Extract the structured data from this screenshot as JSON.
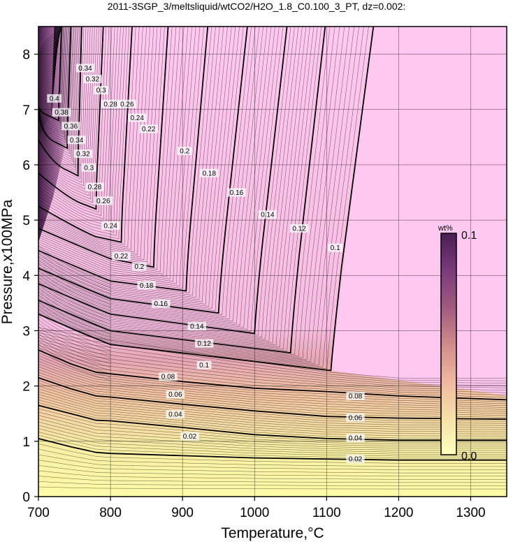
{
  "chart_data": {
    "type": "heatmap",
    "title": "2011-3SGP_3/meltsliquid/wtCO2/H2O_1.8_C0.100_3_PT, dz=0.002:",
    "xlabel": "Temperature,°C",
    "ylabel": "Pressure,x100MPa",
    "xlim": [
      700,
      1350
    ],
    "ylim": [
      0,
      8.5
    ],
    "xticks": [
      "700",
      "800",
      "900",
      "1000",
      "1100",
      "1200",
      "1300"
    ],
    "yticks": [
      "0",
      "1",
      "2",
      "3",
      "4",
      "5",
      "6",
      "7",
      "8"
    ],
    "grid": true,
    "colorbar": {
      "unit": "wt%",
      "max_label": "0.1",
      "min_label": "0.0",
      "colors": [
        "#ffffbe",
        "#f5e0a8",
        "#f0b8a0",
        "#cf8a8a",
        "#a05a80",
        "#7a3a7a",
        "#4a1e55"
      ],
      "position": "right"
    },
    "plateau_color": "#ffc8f0",
    "low_color": "#fdfaa8",
    "contours_low": [
      {
        "level": "0.02",
        "x": [
          700,
          745,
          780,
          800,
          900,
          1000,
          1100,
          1200,
          1350
        ],
        "y": [
          1.05,
          0.9,
          0.8,
          0.78,
          0.74,
          0.7,
          0.68,
          0.66,
          0.66
        ]
      },
      {
        "level": "0.04",
        "x": [
          700,
          745,
          780,
          800,
          900,
          1000,
          1100,
          1200,
          1350
        ],
        "y": [
          1.65,
          1.5,
          1.38,
          1.37,
          1.25,
          1.12,
          1.05,
          1.02,
          1.02
        ]
      },
      {
        "level": "0.06",
        "x": [
          700,
          745,
          780,
          800,
          900,
          1000,
          1100,
          1200,
          1350
        ],
        "y": [
          2.15,
          1.95,
          1.82,
          1.8,
          1.67,
          1.55,
          1.45,
          1.42,
          1.4
        ]
      },
      {
        "level": "0.08",
        "x": [
          700,
          745,
          780,
          800,
          900,
          1000,
          1100,
          1200,
          1350
        ],
        "y": [
          2.65,
          2.4,
          2.25,
          2.22,
          2.08,
          1.96,
          1.9,
          1.82,
          1.75
        ]
      }
    ],
    "contours_corner": [
      {
        "level": "0.1",
        "corner": [
          1106,
          2.28
        ],
        "top": [
          1165,
          8.5
        ],
        "left_end": [
          800,
          2.75
        ]
      },
      {
        "level": "0.12",
        "corner": [
          1050,
          2.6
        ],
        "top": [
          1098,
          8.5
        ],
        "left_end": [
          800,
          3.0
        ]
      },
      {
        "level": "0.14",
        "corner": [
          1000,
          2.95
        ],
        "top": [
          1045,
          8.5
        ],
        "left_end": [
          800,
          3.3
        ]
      },
      {
        "level": "0.16",
        "corner": [
          950,
          3.32
        ],
        "top": [
          990,
          8.5
        ],
        "left_end": [
          800,
          3.58
        ]
      },
      {
        "level": "0.18",
        "corner": [
          905,
          3.72
        ],
        "top": [
          935,
          8.5
        ],
        "left_end": [
          800,
          3.9
        ]
      },
      {
        "level": "0.2",
        "corner": [
          860,
          4.15
        ],
        "top": [
          880,
          8.5
        ],
        "left_end": [
          800,
          4.3
        ]
      },
      {
        "level": "0.22",
        "corner": [
          815,
          4.6
        ],
        "top": [
          830,
          8.5
        ],
        "left_end": [
          780,
          4.7
        ]
      },
      {
        "level": "0.24",
        "corner": [
          780,
          5.2
        ],
        "top": [
          790,
          8.5
        ],
        "left_end": [
          760,
          5.3
        ]
      },
      {
        "level": "0.26",
        "corner": [
          755,
          5.8
        ],
        "top": [
          760,
          8.5
        ],
        "left_end": [
          740,
          5.9
        ]
      },
      {
        "level": "0.28",
        "corner": [
          740,
          6.3
        ],
        "top": [
          745,
          8.5
        ],
        "left_end": [
          725,
          6.4
        ]
      },
      {
        "level": "0.3",
        "corner": [
          728,
          6.8
        ],
        "top": [
          732,
          8.5
        ],
        "left_end": [
          712,
          6.9
        ]
      }
    ],
    "contour_labels": [
      {
        "text": "0.02",
        "x": 910,
        "y": 1.09
      },
      {
        "text": "0.04",
        "x": 890,
        "y": 1.49
      },
      {
        "text": "0.06",
        "x": 890,
        "y": 1.85
      },
      {
        "text": "0.08",
        "x": 880,
        "y": 2.17
      },
      {
        "text": "0.02",
        "x": 1140,
        "y": 0.68
      },
      {
        "text": "0.04",
        "x": 1140,
        "y": 1.06
      },
      {
        "text": "0.06",
        "x": 1140,
        "y": 1.43
      },
      {
        "text": "0.08",
        "x": 1140,
        "y": 1.82
      },
      {
        "text": "0.1",
        "x": 930,
        "y": 2.38
      },
      {
        "text": "0.12",
        "x": 930,
        "y": 2.77
      },
      {
        "text": "0.14",
        "x": 920,
        "y": 3.08
      },
      {
        "text": "0.16",
        "x": 870,
        "y": 3.49
      },
      {
        "text": "0.18",
        "x": 850,
        "y": 3.82
      },
      {
        "text": "0.2",
        "x": 840,
        "y": 4.16
      },
      {
        "text": "0.1",
        "x": 1112,
        "y": 4.5
      },
      {
        "text": "0.12",
        "x": 1062,
        "y": 4.85
      },
      {
        "text": "0.14",
        "x": 1018,
        "y": 5.1
      },
      {
        "text": "0.16",
        "x": 975,
        "y": 5.5
      },
      {
        "text": "0.18",
        "x": 937,
        "y": 5.85
      },
      {
        "text": "0.2",
        "x": 903,
        "y": 6.25
      },
      {
        "text": "0.22",
        "x": 853,
        "y": 6.65
      },
      {
        "text": "0.24",
        "x": 837,
        "y": 6.85
      },
      {
        "text": "0.26",
        "x": 823,
        "y": 7.1
      },
      {
        "text": "0.22",
        "x": 815,
        "y": 4.35
      },
      {
        "text": "0.24",
        "x": 800,
        "y": 4.9
      },
      {
        "text": "0.26",
        "x": 790,
        "y": 5.35
      },
      {
        "text": "0.28",
        "x": 778,
        "y": 5.6
      },
      {
        "text": "0.3",
        "x": 770,
        "y": 5.95
      },
      {
        "text": "0.32",
        "x": 762,
        "y": 6.2
      },
      {
        "text": "0.34",
        "x": 753,
        "y": 6.45
      },
      {
        "text": "0.36",
        "x": 745,
        "y": 6.7
      },
      {
        "text": "0.38",
        "x": 732,
        "y": 6.95
      },
      {
        "text": "0.4",
        "x": 722,
        "y": 7.2
      },
      {
        "text": "0.28",
        "x": 800,
        "y": 7.1
      },
      {
        "text": "0.3",
        "x": 787,
        "y": 7.35
      },
      {
        "text": "0.32",
        "x": 775,
        "y": 7.55
      },
      {
        "text": "0.34",
        "x": 765,
        "y": 7.75
      }
    ]
  }
}
